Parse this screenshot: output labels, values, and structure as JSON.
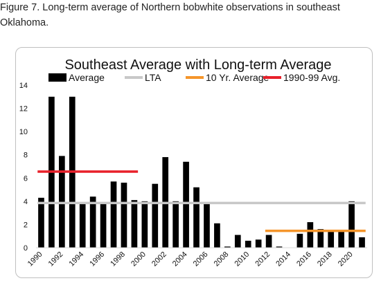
{
  "caption": "Figure 7. Long-term average of Northern bobwhite observations in southeast Oklahoma.",
  "chart_data": {
    "type": "bar",
    "title": "Southeast Average with Long-term Average",
    "xlabel": "",
    "ylabel": "",
    "ylim": [
      0,
      14
    ],
    "yticks": [
      0,
      2,
      4,
      6,
      8,
      10,
      12,
      14
    ],
    "categories": [
      1990,
      1991,
      1992,
      1993,
      1994,
      1995,
      1996,
      1997,
      1998,
      1999,
      2000,
      2001,
      2002,
      2003,
      2004,
      2005,
      2006,
      2007,
      2008,
      2009,
      2010,
      2011,
      2012,
      2013,
      2014,
      2015,
      2016,
      2017,
      2018,
      2019,
      2020,
      2021
    ],
    "x_tick_labels": [
      "1990",
      "1992",
      "1994",
      "1996",
      "1998",
      "2000",
      "2002",
      "2004",
      "2006",
      "2008",
      "2010",
      "2012",
      "2014",
      "2016",
      "2018",
      "2020"
    ],
    "grid": false,
    "legend_placement": "top",
    "series": [
      {
        "name": "Average",
        "type": "bar",
        "color": "#000000",
        "values": [
          4.3,
          13.0,
          7.9,
          13.0,
          3.9,
          4.4,
          3.8,
          5.7,
          5.6,
          4.1,
          4.0,
          5.5,
          7.8,
          4.0,
          7.4,
          5.2,
          3.8,
          2.1,
          0.1,
          1.1,
          0.6,
          0.7,
          1.1,
          0.1,
          0.0,
          1.2,
          2.2,
          1.6,
          1.4,
          1.5,
          4.0,
          0.9
        ]
      },
      {
        "name": "LTA",
        "type": "line",
        "color": "#c8c8c8",
        "value": 3.85,
        "x_range": [
          1990,
          2021
        ]
      },
      {
        "name": "10 Yr. Average",
        "type": "line",
        "color": "#f5952a",
        "value": 1.45,
        "x_range": [
          2012,
          2021
        ]
      },
      {
        "name": "1990-99 Avg.",
        "type": "line",
        "color": "#e8202a",
        "value": 6.55,
        "x_range": [
          1990,
          1999
        ]
      }
    ]
  }
}
